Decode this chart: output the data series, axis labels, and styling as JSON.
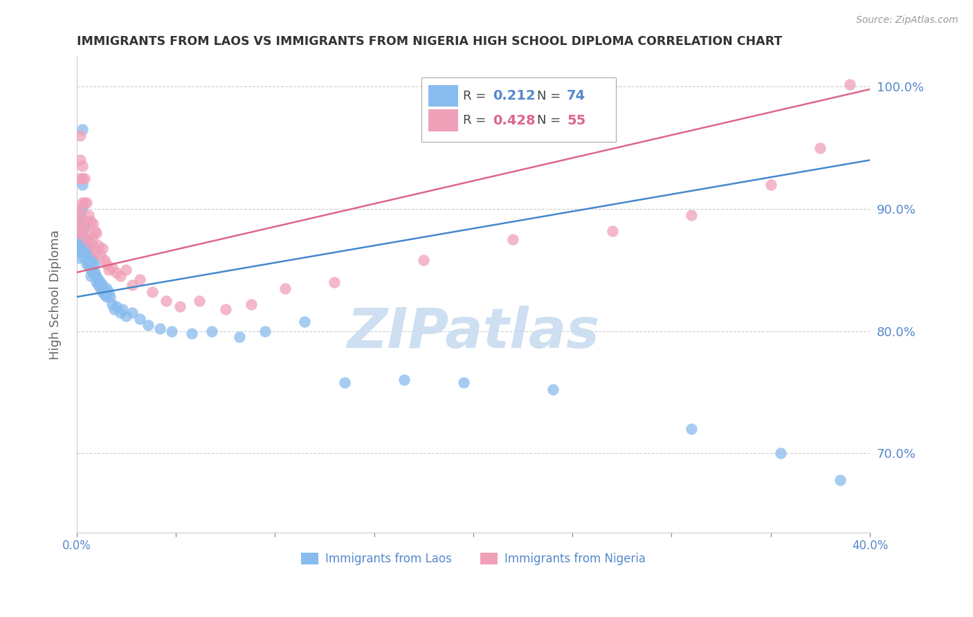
{
  "title": "IMMIGRANTS FROM LAOS VS IMMIGRANTS FROM NIGERIA HIGH SCHOOL DIPLOMA CORRELATION CHART",
  "source": "Source: ZipAtlas.com",
  "ylabel": "High School Diploma",
  "ytick_values": [
    0.7,
    0.8,
    0.9,
    1.0
  ],
  "xlim": [
    0.0,
    0.4
  ],
  "ylim": [
    0.635,
    1.025
  ],
  "color_laos": "#88BBEE",
  "color_nigeria": "#F0A0B8",
  "color_laos_line": "#4488CC",
  "color_nigeria_line": "#DD6688",
  "color_axis_text": "#5588CC",
  "watermark": "ZIPatlas",
  "laos_trend_x": [
    0.0,
    0.4
  ],
  "laos_trend_y": [
    0.828,
    0.94
  ],
  "nigeria_trend_x": [
    0.0,
    0.4
  ],
  "nigeria_trend_y": [
    0.848,
    0.998
  ],
  "laos_x": [
    0.001,
    0.001,
    0.001,
    0.001,
    0.001,
    0.002,
    0.002,
    0.002,
    0.002,
    0.002,
    0.002,
    0.003,
    0.003,
    0.003,
    0.003,
    0.003,
    0.004,
    0.004,
    0.004,
    0.004,
    0.004,
    0.005,
    0.005,
    0.005,
    0.005,
    0.006,
    0.006,
    0.006,
    0.006,
    0.007,
    0.007,
    0.007,
    0.007,
    0.008,
    0.008,
    0.008,
    0.009,
    0.009,
    0.01,
    0.01,
    0.011,
    0.011,
    0.012,
    0.012,
    0.013,
    0.013,
    0.014,
    0.015,
    0.015,
    0.016,
    0.017,
    0.018,
    0.019,
    0.02,
    0.022,
    0.023,
    0.025,
    0.028,
    0.032,
    0.036,
    0.042,
    0.048,
    0.058,
    0.068,
    0.082,
    0.095,
    0.115,
    0.135,
    0.165,
    0.195,
    0.24,
    0.31,
    0.355,
    0.385
  ],
  "laos_y": [
    0.88,
    0.875,
    0.87,
    0.865,
    0.86,
    0.895,
    0.89,
    0.885,
    0.88,
    0.875,
    0.87,
    0.965,
    0.92,
    0.9,
    0.875,
    0.865,
    0.885,
    0.875,
    0.87,
    0.865,
    0.86,
    0.875,
    0.87,
    0.865,
    0.855,
    0.87,
    0.865,
    0.86,
    0.855,
    0.86,
    0.855,
    0.85,
    0.845,
    0.858,
    0.852,
    0.848,
    0.855,
    0.848,
    0.845,
    0.84,
    0.842,
    0.838,
    0.84,
    0.835,
    0.838,
    0.832,
    0.83,
    0.835,
    0.828,
    0.832,
    0.828,
    0.822,
    0.818,
    0.82,
    0.815,
    0.818,
    0.812,
    0.815,
    0.81,
    0.805,
    0.802,
    0.8,
    0.798,
    0.8,
    0.795,
    0.8,
    0.808,
    0.758,
    0.76,
    0.758,
    0.752,
    0.72,
    0.7,
    0.678
  ],
  "nigeria_x": [
    0.001,
    0.001,
    0.001,
    0.001,
    0.002,
    0.002,
    0.002,
    0.002,
    0.003,
    0.003,
    0.003,
    0.003,
    0.004,
    0.004,
    0.004,
    0.005,
    0.005,
    0.005,
    0.006,
    0.006,
    0.007,
    0.007,
    0.008,
    0.008,
    0.009,
    0.009,
    0.01,
    0.01,
    0.011,
    0.012,
    0.013,
    0.014,
    0.015,
    0.016,
    0.018,
    0.02,
    0.022,
    0.025,
    0.028,
    0.032,
    0.038,
    0.045,
    0.052,
    0.062,
    0.075,
    0.088,
    0.105,
    0.13,
    0.175,
    0.22,
    0.27,
    0.31,
    0.35,
    0.375,
    0.39
  ],
  "nigeria_y": [
    0.895,
    0.89,
    0.885,
    0.88,
    0.96,
    0.94,
    0.925,
    0.9,
    0.935,
    0.925,
    0.905,
    0.88,
    0.925,
    0.905,
    0.885,
    0.905,
    0.89,
    0.875,
    0.895,
    0.878,
    0.89,
    0.872,
    0.888,
    0.875,
    0.882,
    0.868,
    0.88,
    0.865,
    0.87,
    0.862,
    0.868,
    0.858,
    0.855,
    0.85,
    0.852,
    0.848,
    0.845,
    0.85,
    0.838,
    0.842,
    0.832,
    0.825,
    0.82,
    0.825,
    0.818,
    0.822,
    0.835,
    0.84,
    0.858,
    0.875,
    0.882,
    0.895,
    0.92,
    0.95,
    1.002
  ]
}
